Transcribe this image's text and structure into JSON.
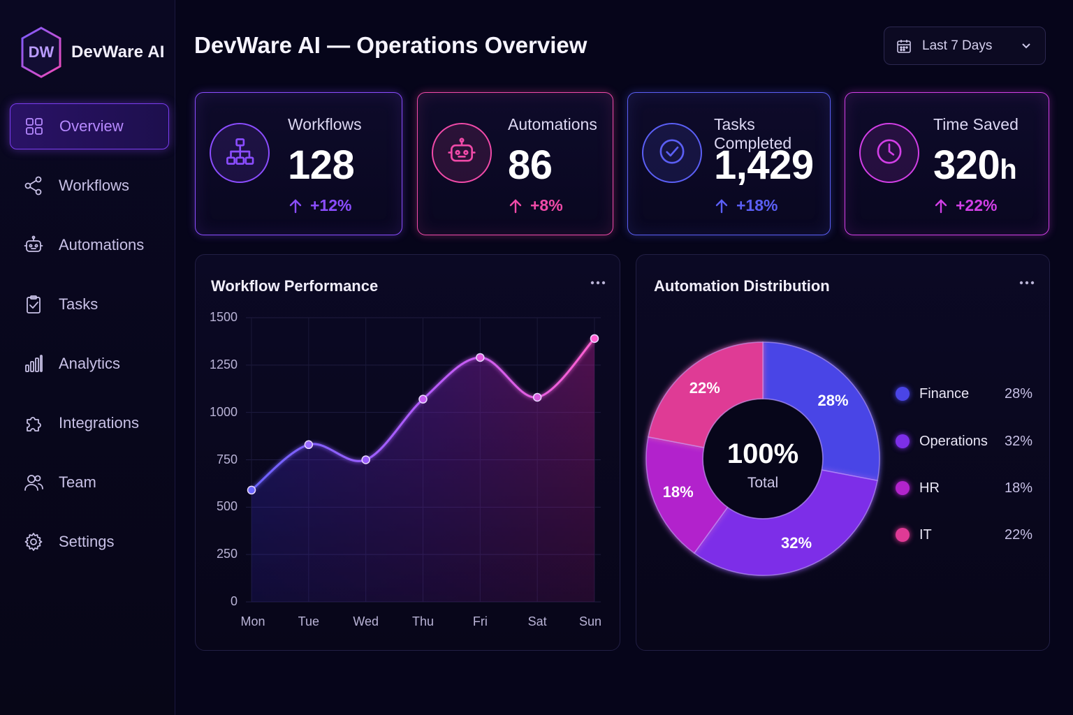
{
  "brand": {
    "initials": "DW",
    "name": "DevWare AI"
  },
  "nav": [
    {
      "label": "Overview",
      "icon": "grid-icon",
      "active": true
    },
    {
      "label": "Workflows",
      "icon": "share-nodes-icon"
    },
    {
      "label": "Automations",
      "icon": "robot-icon"
    },
    {
      "label": "Tasks",
      "icon": "clipboard-check-icon"
    },
    {
      "label": "Analytics",
      "icon": "bar-chart-icon"
    },
    {
      "label": "Integrations",
      "icon": "puzzle-icon"
    },
    {
      "label": "Team",
      "icon": "users-icon"
    },
    {
      "label": "Settings",
      "icon": "gear-icon"
    }
  ],
  "header": {
    "title": "DevWare AI — Operations Overview"
  },
  "date_range": {
    "selected": "Last 7 Days"
  },
  "kpis": [
    {
      "label": "Workflows",
      "value": "128",
      "unit": "",
      "change": "+12%",
      "icon": "hierarchy-icon",
      "color": "#8b4dff"
    },
    {
      "label": "Automations",
      "value": "86",
      "unit": "",
      "change": "+8%",
      "icon": "robot-icon",
      "color": "#f04aa8"
    },
    {
      "label": "Tasks Completed",
      "value": "1,429",
      "unit": "",
      "change": "+18%",
      "icon": "check-circle-icon",
      "color": "#5b5ff5"
    },
    {
      "label": "Time Saved",
      "value": "320",
      "unit": "h",
      "change": "+22%",
      "icon": "clock-icon",
      "color": "#d23fe6"
    }
  ],
  "performance": {
    "title": "Workflow Performance",
    "chart_data": {
      "type": "area",
      "x": [
        "Mon",
        "Tue",
        "Wed",
        "Thu",
        "Fri",
        "Sat",
        "Sun"
      ],
      "values": [
        590,
        830,
        750,
        1070,
        1290,
        1080,
        1390
      ],
      "ylim": [
        0,
        1500
      ],
      "yticks": [
        "1500",
        "1250",
        "1000",
        "750",
        "500",
        "250",
        "0"
      ],
      "grid": true
    }
  },
  "distribution": {
    "title": "Automation Distribution",
    "center_value": "100%",
    "center_label": "Total",
    "chart_data": {
      "type": "pie",
      "slices": [
        {
          "name": "Finance",
          "value": 28,
          "label": "28%",
          "color": "#4a45e6"
        },
        {
          "name": "Operations",
          "value": 32,
          "label": "32%",
          "color": "#7d2fe8"
        },
        {
          "name": "HR",
          "value": 18,
          "label": "18%",
          "color": "#b224cc"
        },
        {
          "name": "IT",
          "value": 22,
          "label": "22%",
          "color": "#df3a95"
        }
      ]
    }
  }
}
